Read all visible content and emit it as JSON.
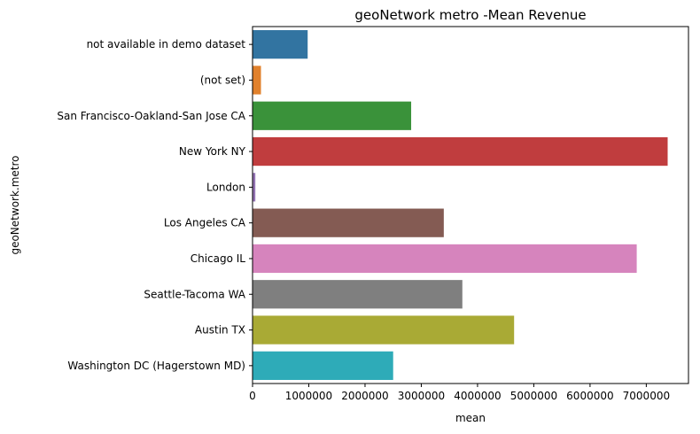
{
  "chart_data": {
    "type": "bar",
    "orientation": "horizontal",
    "title": "geoNetwork metro -Mean Revenue",
    "xlabel": "mean",
    "ylabel": "geoNetwork.metro",
    "categories": [
      "not available in demo dataset",
      "(not set)",
      "San Francisco-Oakland-San Jose CA",
      "New York NY",
      "London",
      "Los Angeles CA",
      "Chicago IL",
      "Seattle-Tacoma WA",
      "Austin TX",
      "Washington DC (Hagerstown MD)"
    ],
    "values": [
      980000,
      150000,
      2820000,
      7380000,
      50000,
      3400000,
      6830000,
      3730000,
      4650000,
      2500000
    ],
    "colors": [
      "#3274a1",
      "#e1812c",
      "#3a923a",
      "#c03d3e",
      "#9372b2",
      "#845b53",
      "#d684bd",
      "#7f7f7f",
      "#a9aa35",
      "#2eabb8"
    ],
    "xlim": [
      0,
      7750000
    ],
    "xticks": [
      0,
      1000000,
      2000000,
      3000000,
      4000000,
      5000000,
      6000000,
      7000000
    ],
    "xtick_labels": [
      "0",
      "1000000",
      "2000000",
      "3000000",
      "4000000",
      "5000000",
      "6000000",
      "7000000"
    ],
    "grid": false,
    "legend": "none"
  }
}
